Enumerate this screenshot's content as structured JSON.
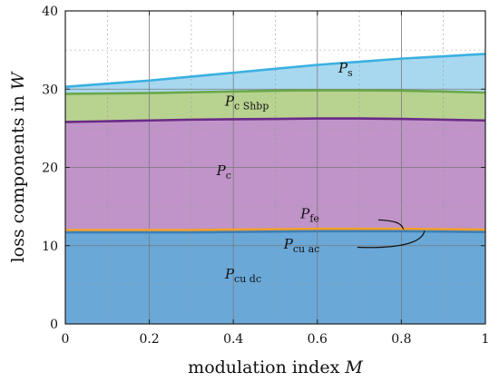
{
  "chart_data": {
    "type": "area",
    "xlabel": "modulation index",
    "xlabel_var": "M",
    "ylabel_var": "W",
    "ylabel": "loss components in",
    "xlim": [
      0,
      1
    ],
    "ylim": [
      0,
      40
    ],
    "xticks": [
      0,
      0.2,
      0.4,
      0.6,
      0.8,
      1
    ],
    "xtick_labels": [
      "0",
      "0.2",
      "0.4",
      "0.6",
      "0.8",
      "1"
    ],
    "yticks": [
      0,
      10,
      20,
      30,
      40
    ],
    "ytick_labels": [
      "0",
      "10",
      "20",
      "30",
      "40"
    ],
    "grid": true,
    "x": [
      0,
      0.1,
      0.2,
      0.3,
      0.4,
      0.5,
      0.6,
      0.7,
      0.8,
      0.9,
      1.0
    ],
    "boundaries": [
      {
        "name": "P_cu,dc",
        "values": [
          11.7,
          11.7,
          11.7,
          11.7,
          11.75,
          11.8,
          11.85,
          11.85,
          11.85,
          11.8,
          11.75
        ],
        "fill": "#6aa8d8",
        "line": "#3d7fb8"
      },
      {
        "name": "P_cu,ac",
        "values": [
          11.85,
          11.85,
          11.85,
          11.85,
          11.9,
          11.95,
          12.0,
          12.0,
          12.0,
          11.95,
          11.9
        ],
        "fill": "#6aa8d8",
        "line": "#3d7fb8"
      },
      {
        "name": "P_fe",
        "values": [
          12.0,
          12.0,
          12.0,
          12.0,
          12.05,
          12.1,
          12.15,
          12.15,
          12.15,
          12.1,
          12.05
        ],
        "fill": "#f2a02a",
        "line": "#f2a02a"
      },
      {
        "name": "P_c",
        "values": [
          25.8,
          25.9,
          26.0,
          26.1,
          26.15,
          26.2,
          26.25,
          26.25,
          26.2,
          26.1,
          26.0
        ],
        "fill": "#c094c8",
        "line": "#6a2a86"
      },
      {
        "name": "P_c,Shbp",
        "values": [
          29.4,
          29.45,
          29.5,
          29.6,
          29.7,
          29.8,
          29.85,
          29.85,
          29.8,
          29.7,
          29.55
        ],
        "fill": "#b8d290",
        "line": "#6aa84a"
      },
      {
        "name": "P_s",
        "values": [
          30.3,
          30.7,
          31.1,
          31.6,
          32.1,
          32.6,
          33.1,
          33.5,
          33.9,
          34.2,
          34.5
        ],
        "fill": "#a8d8f0",
        "line": "#3ab0e0"
      }
    ],
    "labels": [
      {
        "main": "P",
        "sub": "s"
      },
      {
        "main": "P",
        "sub": "c Shbp"
      },
      {
        "main": "P",
        "sub": "c"
      },
      {
        "main": "P",
        "sub": "fe"
      },
      {
        "main": "P",
        "sub": "cu ac"
      },
      {
        "main": "P",
        "sub": "cu dc"
      }
    ]
  }
}
